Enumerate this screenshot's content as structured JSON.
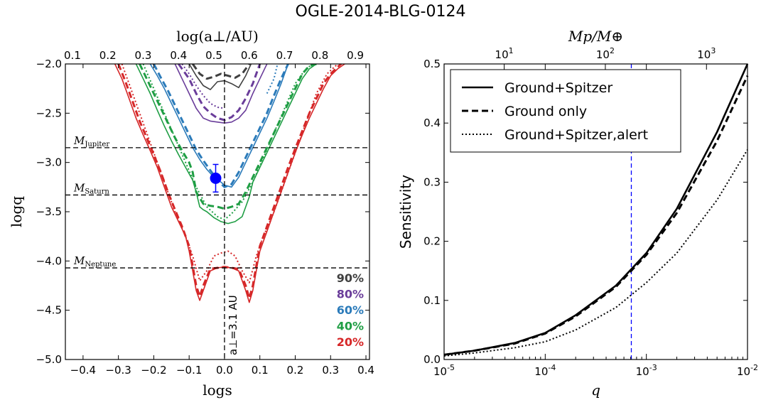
{
  "title": "OGLE-2014-BLG-0124",
  "colors": {
    "p90": "#404040",
    "p80": "#6a3d9a",
    "p60": "#2b7bba",
    "p40": "#1f9e44",
    "p20": "#d62728",
    "marker": "#0000ff",
    "vline": "#0000ff"
  },
  "chart_data": [
    {
      "type": "line",
      "xlabel": "logs",
      "ylabel": "logq",
      "top_axis_label": "log(a⊥/AU)",
      "xlim": [
        -0.45,
        0.41
      ],
      "ylim": [
        -5.0,
        -2.0
      ],
      "x_ticks": [
        "−0.4",
        "−0.3",
        "−0.2",
        "−0.1",
        "0.0",
        "0.1",
        "0.2",
        "0.3",
        "0.4"
      ],
      "x_tick_values": [
        -0.4,
        -0.3,
        -0.2,
        -0.1,
        0.0,
        0.1,
        0.2,
        0.3,
        0.4
      ],
      "y_ticks": [
        "−2.0",
        "−2.5",
        "−3.0",
        "−3.5",
        "−4.0",
        "−4.5",
        "−5.0"
      ],
      "y_tick_values": [
        -2.0,
        -2.5,
        -3.0,
        -3.5,
        -4.0,
        -4.5,
        -5.0
      ],
      "top_ticks": [
        "0.1",
        "0.2",
        "0.3",
        "0.4",
        "0.5",
        "0.6",
        "0.7",
        "0.8",
        "0.9"
      ],
      "top_tick_positions_logs": [
        -0.43,
        -0.33,
        -0.23,
        -0.13,
        -0.03,
        0.07,
        0.17,
        0.27,
        0.37
      ],
      "reference_lines": [
        {
          "label_main": "M",
          "label_sub": "Jupiter",
          "logq": -2.85
        },
        {
          "label_main": "M",
          "label_sub": "Saturn",
          "logq": -3.33
        },
        {
          "label_main": "M",
          "label_sub": "Neptune",
          "logq": -4.07
        }
      ],
      "vertical_line": {
        "logs": 0.0,
        "label": "a⊥=3.1 AU"
      },
      "planet_point": {
        "logs": -0.025,
        "logq": -3.16,
        "yerr": [
          0.14,
          0.14
        ]
      },
      "legend": [
        "90%",
        "80%",
        "60%",
        "40%",
        "20%"
      ],
      "series": [
        {
          "name": "90%",
          "color_key": "p90",
          "style": "solid",
          "x": [
            -0.1,
            -0.08,
            -0.06,
            -0.04,
            -0.02,
            0.0,
            0.02,
            0.04,
            0.06,
            0.075
          ],
          "y": [
            -2.0,
            -2.12,
            -2.22,
            -2.26,
            -2.18,
            -2.17,
            -2.2,
            -2.24,
            -2.12,
            -2.0
          ]
        },
        {
          "name": "90%",
          "color_key": "p90",
          "style": "dashed",
          "x": [
            -0.09,
            -0.07,
            -0.05,
            -0.03,
            -0.01,
            0.01,
            0.03,
            0.05,
            0.07
          ],
          "y": [
            -2.0,
            -2.1,
            -2.15,
            -2.13,
            -2.1,
            -2.12,
            -2.14,
            -2.1,
            -2.0
          ]
        },
        {
          "name": "80%",
          "color_key": "p80",
          "style": "solid",
          "x": [
            -0.14,
            -0.12,
            -0.1,
            -0.08,
            -0.06,
            -0.04,
            -0.02,
            0.0,
            0.02,
            0.04,
            0.06,
            0.08,
            0.1,
            0.12
          ],
          "y": [
            -2.0,
            -2.15,
            -2.3,
            -2.45,
            -2.55,
            -2.58,
            -2.59,
            -2.6,
            -2.59,
            -2.55,
            -2.47,
            -2.3,
            -2.15,
            -2.0
          ]
        },
        {
          "name": "80%",
          "color_key": "p80",
          "style": "dashed",
          "x": [
            -0.13,
            -0.1,
            -0.08,
            -0.06,
            -0.04,
            -0.02,
            0.0,
            0.02,
            0.04,
            0.06,
            0.08,
            0.1
          ],
          "y": [
            -2.0,
            -2.15,
            -2.3,
            -2.43,
            -2.5,
            -2.55,
            -2.57,
            -2.54,
            -2.47,
            -2.35,
            -2.2,
            -2.0
          ]
        },
        {
          "name": "80%",
          "color_key": "p80",
          "style": "dotted",
          "x": [
            -0.12,
            -0.1,
            -0.08,
            -0.06,
            -0.04,
            -0.02,
            0.0
          ],
          "y": [
            -2.0,
            -2.1,
            -2.22,
            -2.32,
            -2.4,
            -2.44,
            -2.45
          ]
        },
        {
          "name": "60%",
          "color_key": "p60",
          "style": "solid",
          "x": [
            -0.21,
            -0.19,
            -0.17,
            -0.15,
            -0.13,
            -0.11,
            -0.09,
            -0.07,
            -0.05,
            -0.03,
            -0.01,
            0.0,
            0.02,
            0.04,
            0.06,
            0.08,
            0.1,
            0.12,
            0.14,
            0.16,
            0.18
          ],
          "y": [
            -2.0,
            -2.12,
            -2.25,
            -2.4,
            -2.55,
            -2.7,
            -2.85,
            -2.97,
            -3.07,
            -3.15,
            -3.2,
            -3.23,
            -3.25,
            -3.15,
            -3.0,
            -2.85,
            -2.7,
            -2.55,
            -2.38,
            -2.2,
            -2.0
          ]
        },
        {
          "name": "60%",
          "color_key": "p60",
          "style": "dashed",
          "x": [
            -0.2,
            -0.18,
            -0.16,
            -0.14,
            -0.12,
            -0.1,
            -0.08,
            -0.06,
            -0.04,
            -0.02,
            0.0,
            0.02,
            0.04,
            0.06,
            0.08,
            0.1,
            0.12,
            0.14,
            0.16,
            0.18
          ],
          "y": [
            -2.0,
            -2.14,
            -2.27,
            -2.42,
            -2.57,
            -2.72,
            -2.87,
            -2.98,
            -3.08,
            -3.18,
            -3.25,
            -3.22,
            -3.1,
            -2.95,
            -2.8,
            -2.65,
            -2.5,
            -2.32,
            -2.15,
            -2.0
          ]
        },
        {
          "name": "60%",
          "color_key": "p60",
          "style": "dotted",
          "x": [
            0.12,
            0.14,
            0.15
          ],
          "y": [
            -2.3,
            -2.15,
            -2.0
          ]
        },
        {
          "name": "40%",
          "color_key": "p40",
          "style": "solid",
          "x": [
            -0.25,
            -0.23,
            -0.21,
            -0.19,
            -0.17,
            -0.15,
            -0.13,
            -0.11,
            -0.09,
            -0.08,
            -0.07,
            -0.06,
            -0.05,
            -0.03,
            -0.01,
            0.01,
            0.03,
            0.05,
            0.06,
            0.07,
            0.08,
            0.1,
            0.12,
            0.14,
            0.16,
            0.18,
            0.2,
            0.22,
            0.24,
            0.26
          ],
          "y": [
            -2.0,
            -2.15,
            -2.3,
            -2.47,
            -2.63,
            -2.78,
            -2.92,
            -3.05,
            -3.18,
            -3.3,
            -3.45,
            -3.48,
            -3.5,
            -3.56,
            -3.6,
            -3.62,
            -3.6,
            -3.55,
            -3.45,
            -3.35,
            -3.2,
            -3.05,
            -2.9,
            -2.75,
            -2.6,
            -2.45,
            -2.3,
            -2.15,
            -2.05,
            -2.0
          ]
        },
        {
          "name": "40%",
          "color_key": "p40",
          "style": "dashed",
          "x": [
            -0.24,
            -0.22,
            -0.2,
            -0.18,
            -0.16,
            -0.14,
            -0.12,
            -0.1,
            -0.09,
            -0.08,
            -0.06,
            -0.04,
            -0.02,
            0.0,
            0.02,
            0.04,
            0.06,
            0.08,
            0.1,
            0.12,
            0.14,
            0.16,
            0.18,
            0.2,
            0.22,
            0.24,
            0.26
          ],
          "y": [
            -2.0,
            -2.15,
            -2.3,
            -2.45,
            -2.6,
            -2.75,
            -2.88,
            -3.0,
            -3.1,
            -3.3,
            -3.42,
            -3.44,
            -3.45,
            -3.47,
            -3.45,
            -3.42,
            -3.3,
            -3.15,
            -3.0,
            -2.85,
            -2.7,
            -2.55,
            -2.4,
            -2.25,
            -2.1,
            -2.02,
            -2.0
          ]
        },
        {
          "name": "40%",
          "color_key": "p40",
          "style": "dotted",
          "x": [
            -0.23,
            -0.2,
            -0.17,
            -0.14,
            -0.11,
            -0.08,
            -0.05,
            -0.02,
            0.0,
            0.02,
            0.05,
            0.08,
            0.11,
            0.14,
            0.17,
            0.2,
            0.23,
            0.25
          ],
          "y": [
            -2.0,
            -2.25,
            -2.5,
            -2.75,
            -3.0,
            -3.25,
            -3.45,
            -3.55,
            -3.58,
            -3.52,
            -3.4,
            -3.2,
            -2.95,
            -2.7,
            -2.45,
            -2.2,
            -2.05,
            -2.0
          ]
        },
        {
          "name": "20%",
          "color_key": "p20",
          "style": "solid",
          "x": [
            -0.31,
            -0.29,
            -0.27,
            -0.25,
            -0.23,
            -0.21,
            -0.19,
            -0.17,
            -0.15,
            -0.13,
            -0.11,
            -0.1,
            -0.09,
            -0.08,
            -0.07,
            -0.06,
            -0.04,
            -0.02,
            0.0,
            0.02,
            0.04,
            0.06,
            0.07,
            0.08,
            0.09,
            0.1,
            0.12,
            0.14,
            0.16,
            0.18,
            0.2,
            0.22,
            0.24,
            0.26,
            0.28,
            0.3,
            0.32,
            0.34
          ],
          "y": [
            -2.0,
            -2.15,
            -2.35,
            -2.55,
            -2.72,
            -2.88,
            -3.05,
            -3.25,
            -3.45,
            -3.6,
            -3.75,
            -3.9,
            -4.1,
            -4.3,
            -4.4,
            -4.3,
            -4.1,
            -4.07,
            -4.06,
            -4.07,
            -4.1,
            -4.3,
            -4.42,
            -4.3,
            -4.1,
            -3.9,
            -3.7,
            -3.5,
            -3.3,
            -3.1,
            -2.9,
            -2.72,
            -2.55,
            -2.4,
            -2.25,
            -2.12,
            -2.05,
            -2.0
          ]
        },
        {
          "name": "20%",
          "color_key": "p20",
          "style": "dashed",
          "x": [
            -0.3,
            -0.28,
            -0.26,
            -0.24,
            -0.22,
            -0.2,
            -0.18,
            -0.16,
            -0.14,
            -0.12,
            -0.1,
            -0.09,
            -0.08,
            -0.07,
            -0.06,
            -0.04,
            -0.02,
            0.0,
            0.02,
            0.04,
            0.06,
            0.07,
            0.08,
            0.09,
            0.1,
            0.12,
            0.14,
            0.16,
            0.18,
            0.2,
            0.22,
            0.24,
            0.26,
            0.28,
            0.3,
            0.32,
            0.33
          ],
          "y": [
            -2.0,
            -2.18,
            -2.38,
            -2.58,
            -2.75,
            -2.92,
            -3.1,
            -3.3,
            -3.48,
            -3.65,
            -3.85,
            -4.05,
            -4.25,
            -4.36,
            -4.25,
            -4.08,
            -4.07,
            -4.06,
            -4.07,
            -4.08,
            -4.25,
            -4.38,
            -4.25,
            -4.05,
            -3.85,
            -3.65,
            -3.45,
            -3.25,
            -3.05,
            -2.86,
            -2.68,
            -2.5,
            -2.35,
            -2.2,
            -2.1,
            -2.03,
            -2.0
          ]
        },
        {
          "name": "20%",
          "color_key": "p20",
          "style": "dotted",
          "x": [
            -0.29,
            -0.26,
            -0.23,
            -0.2,
            -0.17,
            -0.14,
            -0.11,
            -0.09,
            -0.07,
            -0.05,
            -0.03,
            -0.01,
            0.01,
            0.03,
            0.05,
            0.07,
            0.09,
            0.11,
            0.14,
            0.17,
            0.2,
            0.23,
            0.26,
            0.29,
            0.32
          ],
          "y": [
            -2.0,
            -2.3,
            -2.6,
            -2.9,
            -3.2,
            -3.5,
            -3.75,
            -3.95,
            -4.2,
            -4.1,
            -3.95,
            -3.92,
            -3.9,
            -3.95,
            -4.1,
            -4.22,
            -3.95,
            -3.75,
            -3.5,
            -3.2,
            -2.9,
            -2.6,
            -2.3,
            -2.1,
            -2.0
          ]
        }
      ]
    },
    {
      "type": "line",
      "xlabel": "q",
      "ylabel": "Sensitivity",
      "top_axis_label": "Mp/M⊕",
      "x_scale": "log",
      "xlim": [
        1e-05,
        0.01
      ],
      "ylim": [
        0.0,
        0.5
      ],
      "x_tick_base": "10",
      "x_tick_exponents": [
        "-5",
        "-4",
        "-3",
        "-2"
      ],
      "y_ticks": [
        "0.0",
        "0.1",
        "0.2",
        "0.3",
        "0.4",
        "0.5"
      ],
      "y_tick_values": [
        0.0,
        0.1,
        0.2,
        0.3,
        0.4,
        0.5
      ],
      "top_tick_base": "10",
      "top_tick_exponents": [
        "1",
        "2",
        "3"
      ],
      "top_tick_q_values": [
        3.93e-05,
        0.000393,
        0.00393
      ],
      "vertical_line_q": 0.00071,
      "legend": [
        "Ground+Spitzer",
        "Ground only",
        "Ground+Spitzer,alert"
      ],
      "series": [
        {
          "name": "Ground+Spitzer",
          "style": "solid",
          "x": [
            1e-05,
            2e-05,
            5e-05,
            0.0001,
            0.0002,
            0.0005,
            0.001,
            0.002,
            0.005,
            0.01
          ],
          "y": [
            0.008,
            0.015,
            0.028,
            0.045,
            0.075,
            0.125,
            0.18,
            0.255,
            0.385,
            0.5
          ]
        },
        {
          "name": "Ground only",
          "style": "dashed",
          "x": [
            1e-05,
            2e-05,
            5e-05,
            0.0001,
            0.0002,
            0.0005,
            0.001,
            0.002,
            0.005,
            0.01
          ],
          "y": [
            0.008,
            0.015,
            0.027,
            0.044,
            0.073,
            0.123,
            0.177,
            0.248,
            0.37,
            0.48
          ]
        },
        {
          "name": "Ground+Spitzer,alert",
          "style": "dotted",
          "x": [
            1e-05,
            2e-05,
            5e-05,
            0.0001,
            0.0002,
            0.0005,
            0.001,
            0.002,
            0.005,
            0.01
          ],
          "y": [
            0.006,
            0.011,
            0.02,
            0.03,
            0.05,
            0.088,
            0.13,
            0.18,
            0.27,
            0.355
          ]
        }
      ]
    }
  ]
}
